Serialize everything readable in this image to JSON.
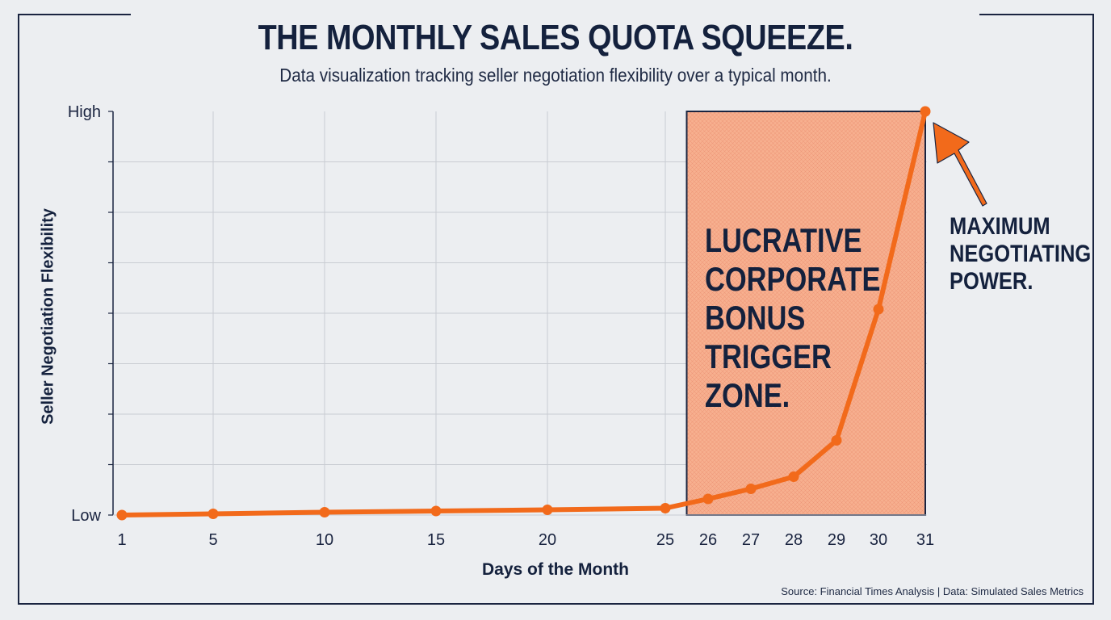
{
  "title": "THE MONTHLY SALES QUOTA SQUEEZE.",
  "subtitle": "Data visualization tracking seller negotiation flexibility over a typical month.",
  "source": "Source: Financial Times Analysis | Data: Simulated Sales Metrics",
  "colors": {
    "line": "#f26a1b",
    "zone_fill": "#f7b08f",
    "text": "#14213d",
    "grid": "#c9ccd2",
    "background": "#eceef1"
  },
  "chart_data": {
    "type": "line",
    "title": "THE MONTHLY SALES QUOTA SQUEEZE.",
    "xlabel": "Days of the Month",
    "ylabel": "Seller Negotiation Flexibility",
    "x_ticks": [
      "1",
      "5",
      "10",
      "15",
      "20",
      "25",
      "26",
      "27",
      "28",
      "29",
      "30",
      "31"
    ],
    "y_tick_labels": {
      "min": "Low",
      "max": "High"
    },
    "ylim": [
      0,
      100
    ],
    "grid": true,
    "series": [
      {
        "x": [
          1,
          5,
          10,
          15,
          20,
          25,
          26,
          27,
          28,
          29,
          30,
          31
        ],
        "y": [
          0,
          0.3,
          0.7,
          1,
          1.3,
          1.7,
          4,
          6.5,
          9.5,
          18.5,
          51,
          100
        ]
      }
    ],
    "highlight_zone": {
      "x_from": 25.5,
      "x_to": 31,
      "label_lines": [
        "LUCRATIVE",
        "CORPORATE",
        "BONUS",
        "TRIGGER",
        "ZONE."
      ]
    },
    "annotation": {
      "x": 31,
      "y": 100,
      "label_lines": [
        "MAXIMUM",
        "NEGOTIATING",
        "POWER."
      ]
    }
  }
}
